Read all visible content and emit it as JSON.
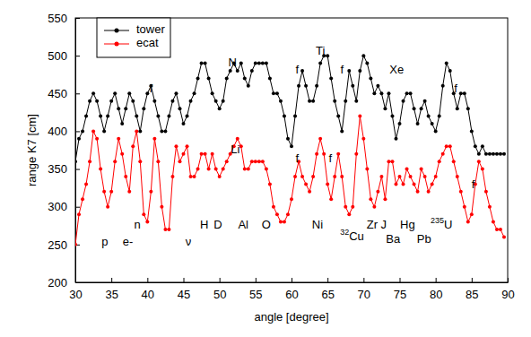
{
  "chart_data": {
    "type": "line",
    "x_label": "angle [degree]",
    "y_label": "range K7 [cm]",
    "xlim": [
      30,
      90
    ],
    "ylim": [
      200,
      550
    ],
    "xticks": [
      30,
      35,
      40,
      45,
      50,
      55,
      60,
      65,
      70,
      75,
      80,
      85,
      90
    ],
    "yticks": [
      200,
      250,
      300,
      350,
      400,
      450,
      500,
      550
    ],
    "grid": false,
    "legend": "upper left",
    "marker": "circle",
    "line_style": "solid",
    "x": [
      30,
      30.5,
      31,
      31.5,
      32,
      32.5,
      33,
      33.5,
      34,
      34.5,
      35,
      35.5,
      36,
      36.5,
      37,
      37.5,
      38,
      38.5,
      39,
      39.5,
      40,
      40.5,
      41,
      41.5,
      42,
      42.5,
      43,
      43.5,
      44,
      44.5,
      45,
      45.5,
      46,
      46.5,
      47,
      47.5,
      48,
      48.5,
      49,
      49.5,
      50,
      50.5,
      51,
      51.5,
      52,
      52.5,
      53,
      53.5,
      54,
      54.5,
      55,
      55.5,
      56,
      56.5,
      57,
      57.5,
      58,
      58.5,
      59,
      59.5,
      60,
      60.5,
      61,
      61.5,
      62,
      62.5,
      63,
      63.5,
      64,
      64.5,
      65,
      65.5,
      66,
      66.5,
      67,
      67.5,
      68,
      68.5,
      69,
      69.5,
      70,
      70.5,
      71,
      71.5,
      72,
      72.5,
      73,
      73.5,
      74,
      74.5,
      75,
      75.5,
      76,
      76.5,
      77,
      77.5,
      78,
      78.5,
      79,
      79.5,
      80,
      80.5,
      81,
      81.5,
      82,
      82.5,
      83,
      83.5,
      84,
      84.5,
      85,
      85.5,
      86,
      86.5,
      87,
      87.5,
      88,
      88.5,
      89,
      89.5
    ],
    "series": [
      {
        "name": "tower",
        "color": "#000000",
        "values": [
          360,
          390,
          400,
          420,
          440,
          450,
          440,
          420,
          400,
          420,
          440,
          450,
          430,
          410,
          430,
          450,
          440,
          420,
          400,
          430,
          450,
          460,
          440,
          420,
          400,
          400,
          420,
          440,
          450,
          430,
          410,
          420,
          440,
          450,
          470,
          490,
          490,
          470,
          450,
          440,
          430,
          440,
          470,
          480,
          490,
          480,
          490,
          470,
          460,
          480,
          490,
          490,
          490,
          490,
          470,
          450,
          450,
          440,
          420,
          390,
          380,
          420,
          460,
          480,
          460,
          440,
          440,
          460,
          490,
          500,
          500,
          470,
          440,
          420,
          400,
          440,
          480,
          460,
          440,
          480,
          500,
          490,
          470,
          450,
          460,
          450,
          430,
          450,
          420,
          390,
          410,
          440,
          450,
          450,
          430,
          410,
          430,
          440,
          420,
          410,
          400,
          420,
          460,
          490,
          480,
          450,
          430,
          450,
          450,
          430,
          400,
          380,
          370,
          380,
          370,
          370,
          370,
          370,
          370,
          370
        ]
      },
      {
        "name": "ecat",
        "color": "#ff0000",
        "values": [
          250,
          290,
          310,
          330,
          360,
          400,
          390,
          350,
          320,
          300,
          320,
          360,
          390,
          370,
          340,
          320,
          380,
          400,
          360,
          290,
          280,
          320,
          390,
          360,
          300,
          270,
          270,
          340,
          380,
          360,
          370,
          380,
          340,
          340,
          350,
          370,
          370,
          350,
          370,
          350,
          340,
          350,
          360,
          370,
          380,
          390,
          380,
          350,
          350,
          360,
          360,
          360,
          360,
          350,
          330,
          300,
          290,
          280,
          280,
          290,
          310,
          340,
          360,
          340,
          330,
          320,
          340,
          370,
          390,
          370,
          330,
          310,
          340,
          370,
          340,
          300,
          290,
          300,
          370,
          420,
          390,
          350,
          310,
          300,
          320,
          340,
          310,
          360,
          360,
          330,
          340,
          330,
          350,
          340,
          330,
          320,
          350,
          340,
          320,
          330,
          340,
          360,
          370,
          380,
          380,
          360,
          340,
          320,
          300,
          280,
          290,
          330,
          360,
          350,
          320,
          300,
          280,
          270,
          270,
          260
        ]
      }
    ],
    "annotations": [
      {
        "text": "f",
        "x": 40.5,
        "y": 455
      },
      {
        "text": "N",
        "x": 51.8,
        "y": 490
      },
      {
        "text": "f",
        "x": 60.8,
        "y": 480
      },
      {
        "text": "Ti",
        "x": 64,
        "y": 505
      },
      {
        "text": "f",
        "x": 67,
        "y": 480
      },
      {
        "text": "Xe",
        "x": 74.6,
        "y": 480
      },
      {
        "text": "f",
        "x": 82.8,
        "y": 455
      },
      {
        "text": "Li",
        "x": 52.2,
        "y": 375
      },
      {
        "text": "f",
        "x": 60.8,
        "y": 362
      },
      {
        "text": "f",
        "x": 65.4,
        "y": 362
      },
      {
        "text": "f",
        "x": 85.2,
        "y": 328
      },
      {
        "text": "p",
        "x": 34.1,
        "y": 252
      },
      {
        "text": "e-",
        "x": 37.3,
        "y": 252
      },
      {
        "text": "n",
        "x": 38.6,
        "y": 275
      },
      {
        "text": "ν",
        "x": 45.7,
        "y": 252
      },
      {
        "text": "H",
        "x": 47.9,
        "y": 275
      },
      {
        "text": "D",
        "x": 49.8,
        "y": 275
      },
      {
        "text": "Al",
        "x": 53.3,
        "y": 275
      },
      {
        "text": "O",
        "x": 56.5,
        "y": 275
      },
      {
        "text": "Ni",
        "x": 63.6,
        "y": 275
      },
      {
        "text": "Cu",
        "sup": "32",
        "x": 68.4,
        "y": 259
      },
      {
        "text": "Zr",
        "x": 71.2,
        "y": 275
      },
      {
        "text": "J",
        "x": 72.8,
        "y": 275
      },
      {
        "text": "Ba",
        "x": 74.1,
        "y": 256
      },
      {
        "text": "Hg",
        "x": 76.1,
        "y": 275
      },
      {
        "text": "Pb",
        "x": 78.4,
        "y": 256
      },
      {
        "text": "U",
        "sup": "235",
        "x": 80.8,
        "y": 275
      }
    ]
  }
}
